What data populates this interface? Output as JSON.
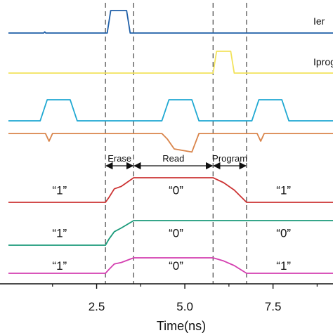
{
  "chart_data": {
    "type": "line",
    "title": "",
    "xlabel": "Time(ns)",
    "xlim": [
      0.0,
      9.2
    ],
    "xticks": [
      2.5,
      5.0,
      7.5
    ],
    "tick_labels": [
      "2.5",
      "5.0",
      "7.5"
    ],
    "guide_lines_x": [
      2.75,
      3.55,
      5.8,
      6.75
    ],
    "phases": [
      {
        "label": "Erase",
        "x_start": 2.75,
        "x_end": 3.55
      },
      {
        "label": "Read",
        "x_start": 3.55,
        "x_end": 5.8
      },
      {
        "label": "Program",
        "x_start": 5.8,
        "x_end": 6.75
      }
    ],
    "series": [
      {
        "name": "Ier",
        "color": "#1f5fa8",
        "points": [
          [
            0.0,
            0.0
          ],
          [
            1.0,
            0.0
          ],
          [
            1.03,
            0.05
          ],
          [
            1.06,
            0.0
          ],
          [
            2.8,
            0.0
          ],
          [
            2.9,
            1.0
          ],
          [
            3.35,
            1.0
          ],
          [
            3.45,
            0.0
          ],
          [
            9.2,
            0.0
          ]
        ]
      },
      {
        "name": "Iprog",
        "color": "#f2e35c",
        "points": [
          [
            0.0,
            0.0
          ],
          [
            5.8,
            0.0
          ],
          [
            5.9,
            1.0
          ],
          [
            6.3,
            1.0
          ],
          [
            6.4,
            0.0
          ],
          [
            9.2,
            0.0
          ]
        ]
      },
      {
        "name": "",
        "color": "#1ea8d2",
        "points": [
          [
            0.0,
            0.0
          ],
          [
            0.9,
            0.0
          ],
          [
            1.1,
            1.0
          ],
          [
            1.75,
            1.0
          ],
          [
            1.95,
            0.0
          ],
          [
            4.35,
            0.0
          ],
          [
            4.55,
            1.0
          ],
          [
            5.2,
            1.0
          ],
          [
            5.4,
            0.0
          ],
          [
            6.9,
            0.0
          ],
          [
            7.1,
            1.0
          ],
          [
            7.75,
            1.0
          ],
          [
            7.95,
            0.0
          ],
          [
            9.2,
            0.0
          ]
        ]
      },
      {
        "name": "",
        "color": "#d9844a",
        "points": [
          [
            0.0,
            0.0
          ],
          [
            1.05,
            0.0
          ],
          [
            1.15,
            -0.5
          ],
          [
            1.25,
            0.0
          ],
          [
            4.35,
            0.0
          ],
          [
            4.5,
            -0.35
          ],
          [
            4.7,
            -1.0
          ],
          [
            5.2,
            -1.2
          ],
          [
            5.4,
            0.0
          ],
          [
            7.05,
            0.0
          ],
          [
            7.15,
            -0.5
          ],
          [
            7.25,
            0.0
          ],
          [
            9.2,
            0.0
          ]
        ]
      },
      {
        "name": "",
        "color": "#cc3333",
        "points": [
          [
            0.0,
            0.0
          ],
          [
            2.75,
            0.0
          ],
          [
            2.85,
            0.2
          ],
          [
            3.0,
            0.55
          ],
          [
            3.2,
            0.65
          ],
          [
            3.55,
            1.0
          ],
          [
            5.8,
            1.0
          ],
          [
            6.1,
            0.8
          ],
          [
            6.4,
            0.5
          ],
          [
            6.75,
            0.0
          ],
          [
            9.2,
            0.0
          ]
        ]
      },
      {
        "name": "",
        "color": "#1a9a7a",
        "points": [
          [
            0.0,
            0.0
          ],
          [
            2.75,
            0.0
          ],
          [
            2.85,
            0.25
          ],
          [
            3.0,
            0.55
          ],
          [
            3.2,
            0.7
          ],
          [
            3.55,
            1.0
          ],
          [
            9.2,
            1.0
          ]
        ]
      },
      {
        "name": "",
        "color": "#d43fb0",
        "points": [
          [
            0.0,
            0.0
          ],
          [
            2.75,
            0.0
          ],
          [
            2.85,
            0.25
          ],
          [
            3.0,
            0.6
          ],
          [
            3.2,
            0.7
          ],
          [
            3.55,
            1.0
          ],
          [
            5.8,
            1.0
          ],
          [
            6.1,
            0.8
          ],
          [
            6.4,
            0.5
          ],
          [
            6.75,
            0.0
          ],
          [
            9.2,
            0.0
          ]
        ]
      }
    ],
    "state_labels": [
      {
        "row": 4,
        "items": [
          {
            "x": 1.45,
            "text": "“1”"
          },
          {
            "x": 4.75,
            "text": "“0”"
          },
          {
            "x": 7.8,
            "text": "“1”"
          }
        ]
      },
      {
        "row": 5,
        "items": [
          {
            "x": 1.45,
            "text": "“1”"
          },
          {
            "x": 4.75,
            "text": "“0”"
          },
          {
            "x": 7.8,
            "text": "“0”"
          }
        ]
      },
      {
        "row": 6,
        "items": [
          {
            "x": 1.45,
            "text": "“1”"
          },
          {
            "x": 4.75,
            "text": "“0”"
          },
          {
            "x": 7.8,
            "text": "“1”"
          }
        ]
      }
    ],
    "trace_labels": [
      {
        "row": 0,
        "text": "Ier"
      },
      {
        "row": 1,
        "text": "Iprog"
      }
    ]
  }
}
